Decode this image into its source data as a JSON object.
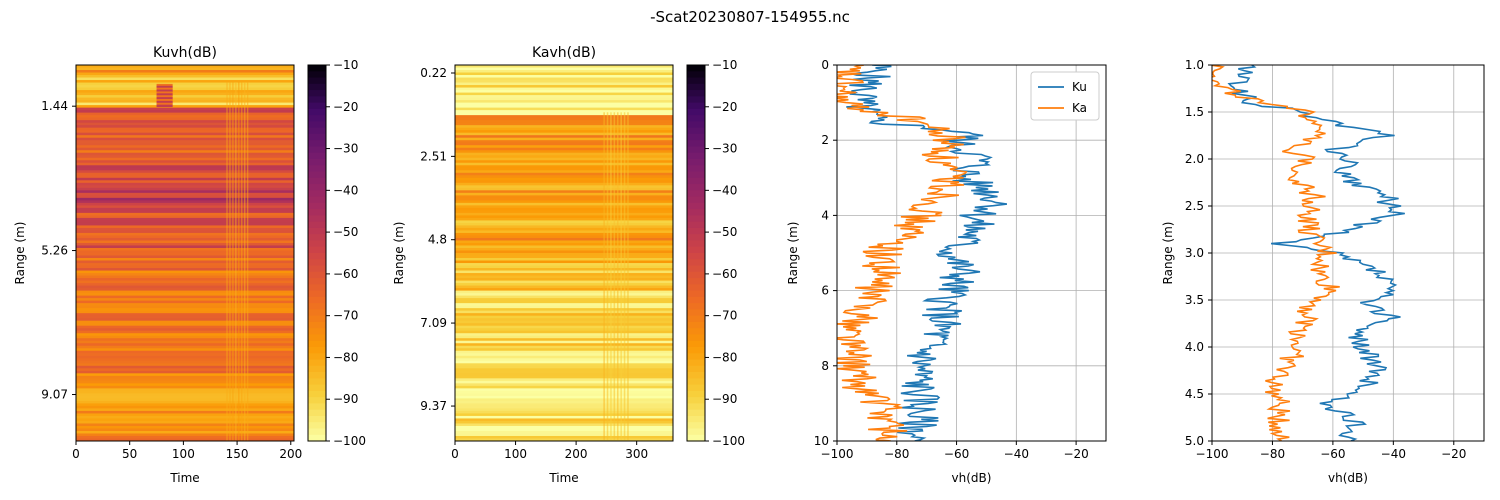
{
  "figure": {
    "suptitle": "-Scat20230807-154955.nc"
  },
  "chart_data": [
    {
      "type": "heatmap",
      "title": "Kuvh(dB)",
      "xlabel": "Time",
      "ylabel": "Range (m)",
      "xlim": [
        0,
        203
      ],
      "x_ticks": [
        0,
        50,
        100,
        150,
        200
      ],
      "y_ticks": [
        1.44,
        5.26,
        9.07
      ],
      "range_extent_m": [
        0.35,
        10.3
      ],
      "colormap": "inferno_r",
      "colorbar": {
        "min": -100,
        "max": -10,
        "ticks": [
          -10,
          -20,
          -30,
          -40,
          -50,
          -60,
          -70,
          -80,
          -90,
          -100
        ]
      },
      "bands": [
        {
          "from": 0.35,
          "to": 0.6,
          "db": -78
        },
        {
          "from": 0.6,
          "to": 1.1,
          "db": -88
        },
        {
          "from": 1.1,
          "to": 1.45,
          "db": -86
        },
        {
          "from": 1.45,
          "to": 1.7,
          "db": -58
        },
        {
          "from": 1.7,
          "to": 2.7,
          "db": -62
        },
        {
          "from": 2.7,
          "to": 3.6,
          "db": -58
        },
        {
          "from": 3.6,
          "to": 4.0,
          "db": -50
        },
        {
          "from": 4.0,
          "to": 5.2,
          "db": -60
        },
        {
          "from": 5.2,
          "to": 6.6,
          "db": -68
        },
        {
          "from": 6.6,
          "to": 8.9,
          "db": -70
        },
        {
          "from": 8.9,
          "to": 9.4,
          "db": -77
        },
        {
          "from": 9.4,
          "to": 10.3,
          "db": -72
        }
      ],
      "features": [
        {
          "kind": "blob",
          "t_from": 75,
          "t_to": 90,
          "r_from": 0.85,
          "r_to": 1.45,
          "db": -62
        },
        {
          "kind": "stripe",
          "t_from": 140,
          "t_to": 162,
          "r_from": 0.8,
          "r_to": 10.3,
          "db": -80
        }
      ]
    },
    {
      "type": "heatmap",
      "title": "Kavh(dB)",
      "xlabel": "Time",
      "ylabel": "Range (m)",
      "xlim": [
        0,
        360
      ],
      "x_ticks": [
        0,
        100,
        200,
        300
      ],
      "y_ticks": [
        0.22,
        2.51,
        4.8,
        7.09,
        9.37
      ],
      "range_extent_m": [
        0.0,
        10.33
      ],
      "colormap": "inferno_r",
      "colorbar": {
        "min": -100,
        "max": -10,
        "ticks": [
          -10,
          -20,
          -30,
          -40,
          -50,
          -60,
          -70,
          -80,
          -90,
          -100
        ]
      },
      "bands": [
        {
          "from": 0.0,
          "to": 1.35,
          "db": -96
        },
        {
          "from": 1.35,
          "to": 1.6,
          "db": -72
        },
        {
          "from": 1.6,
          "to": 2.4,
          "db": -76
        },
        {
          "from": 2.4,
          "to": 3.6,
          "db": -80
        },
        {
          "from": 3.6,
          "to": 4.6,
          "db": -82
        },
        {
          "from": 4.6,
          "to": 5.2,
          "db": -76
        },
        {
          "from": 5.2,
          "to": 6.2,
          "db": -85
        },
        {
          "from": 6.2,
          "to": 8.0,
          "db": -90
        },
        {
          "from": 8.0,
          "to": 10.33,
          "db": -93
        }
      ],
      "features": [
        {
          "kind": "stripe",
          "t_from": 245,
          "t_to": 290,
          "r_from": 1.3,
          "r_to": 10.3,
          "db": -86
        }
      ]
    },
    {
      "type": "line",
      "xlabel": "vh(dB)",
      "ylabel": "Range (m)",
      "xlim": [
        -100,
        -10
      ],
      "ylim": [
        10,
        0
      ],
      "x_ticks": [
        -100,
        -80,
        -60,
        -40,
        -20
      ],
      "y_ticks": [
        0,
        2,
        4,
        6,
        8,
        10
      ],
      "grid": true,
      "legend": "upper right",
      "series": [
        {
          "name": "Ku",
          "color": "#1f77b4",
          "range": [
            0.0,
            0.5,
            1.0,
            1.5,
            1.8,
            2.1,
            2.5,
            3.0,
            3.3,
            3.7,
            4.0,
            4.5,
            5.0,
            5.5,
            6.0,
            6.5,
            7.0,
            7.5,
            8.0,
            8.5,
            9.0,
            9.5,
            10.0
          ],
          "vh": [
            -87,
            -90,
            -93,
            -88,
            -55,
            -60,
            -52,
            -58,
            -50,
            -45,
            -53,
            -55,
            -62,
            -58,
            -62,
            -65,
            -65,
            -70,
            -72,
            -73,
            -72,
            -73,
            -74
          ]
        },
        {
          "name": "Ka",
          "color": "#ff7f0e",
          "range": [
            0.0,
            0.5,
            1.0,
            1.5,
            2.0,
            2.5,
            3.0,
            3.5,
            4.0,
            4.5,
            5.0,
            5.5,
            6.0,
            6.5,
            7.0,
            7.5,
            8.0,
            8.5,
            9.0,
            9.5,
            10.0
          ],
          "vh": [
            -97,
            -98,
            -100,
            -72,
            -62,
            -66,
            -62,
            -64,
            -72,
            -77,
            -85,
            -85,
            -88,
            -90,
            -95,
            -95,
            -95,
            -93,
            -85,
            -83,
            -82
          ]
        }
      ]
    },
    {
      "type": "line",
      "xlabel": "vh(dB)",
      "ylabel": "Range (m)",
      "xlim": [
        -100,
        -10
      ],
      "ylim": [
        5.0,
        1.0
      ],
      "x_ticks": [
        -100,
        -80,
        -60,
        -40,
        -20
      ],
      "y_ticks": [
        1.0,
        1.5,
        2.0,
        2.5,
        3.0,
        3.5,
        4.0,
        4.5,
        5.0
      ],
      "grid": true,
      "series": [
        {
          "name": "Ku",
          "color": "#1f77b4",
          "range": [
            1.0,
            1.1,
            1.2,
            1.3,
            1.4,
            1.5,
            1.6,
            1.75,
            1.9,
            2.0,
            2.2,
            2.4,
            2.6,
            2.8,
            2.9,
            3.0,
            3.2,
            3.4,
            3.55,
            3.7,
            3.8,
            4.0,
            4.2,
            4.4,
            4.6,
            4.8,
            5.0
          ],
          "vh": [
            -88,
            -90,
            -92,
            -90,
            -88,
            -70,
            -62,
            -42,
            -60,
            -55,
            -57,
            -42,
            -40,
            -60,
            -80,
            -60,
            -45,
            -41,
            -50,
            -38,
            -52,
            -50,
            -46,
            -48,
            -62,
            -53,
            -54
          ]
        },
        {
          "name": "Ka",
          "color": "#ff7f0e",
          "range": [
            1.0,
            1.1,
            1.2,
            1.3,
            1.4,
            1.5,
            1.6,
            1.75,
            1.9,
            2.0,
            2.2,
            2.4,
            2.6,
            2.8,
            3.0,
            3.2,
            3.4,
            3.6,
            3.8,
            4.0,
            4.2,
            4.4,
            4.6,
            4.8,
            5.0
          ],
          "vh": [
            -98,
            -97,
            -100,
            -92,
            -85,
            -70,
            -65,
            -62,
            -78,
            -68,
            -72,
            -66,
            -68,
            -68,
            -62,
            -65,
            -60,
            -68,
            -70,
            -72,
            -75,
            -80,
            -78,
            -78,
            -77
          ]
        }
      ]
    }
  ]
}
